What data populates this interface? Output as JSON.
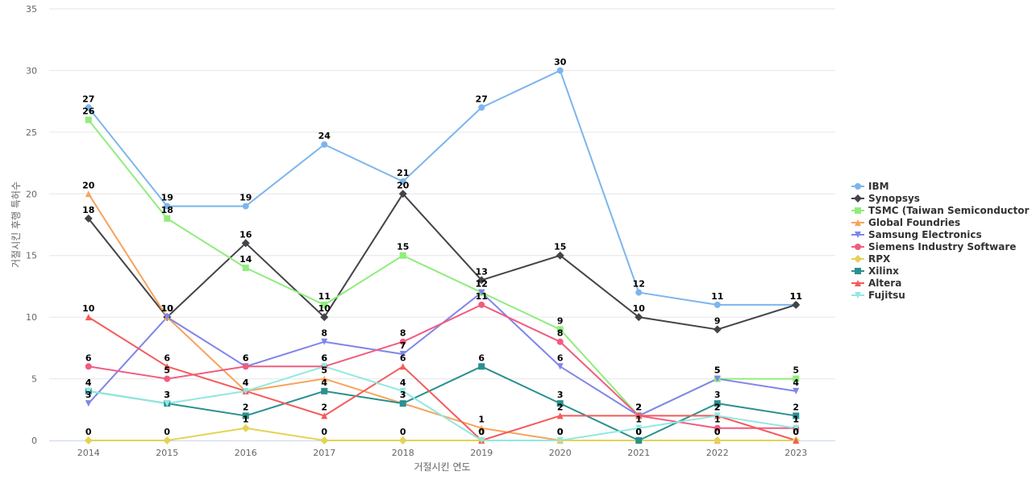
{
  "chart_data": {
    "type": "line",
    "title": "",
    "xlabel": "거절시킨 연도",
    "ylabel": "거절시킨 후행 특허수",
    "x": [
      "2014",
      "2015",
      "2016",
      "2017",
      "2018",
      "2019",
      "2020",
      "2021",
      "2022",
      "2023"
    ],
    "ylim": [
      0,
      35
    ],
    "yticks": [
      0,
      5,
      10,
      15,
      20,
      25,
      30,
      35
    ],
    "grid": true,
    "legend_position": "right",
    "series": [
      {
        "name": "IBM",
        "color": "#7cb5ec",
        "marker": "circle",
        "values": [
          27,
          19,
          19,
          24,
          21,
          27,
          30,
          12,
          11,
          11
        ]
      },
      {
        "name": "Synopsys",
        "color": "#434348",
        "marker": "diamond",
        "values": [
          18,
          10,
          16,
          10,
          20,
          13,
          15,
          10,
          9,
          11
        ]
      },
      {
        "name": "TSMC (Taiwan Semiconductor ...",
        "color": "#90ed7d",
        "marker": "square",
        "values": [
          26,
          18,
          14,
          11,
          15,
          12,
          9,
          2,
          5,
          5
        ]
      },
      {
        "name": "Global Foundries",
        "color": "#f7a35c",
        "marker": "triangle",
        "values": [
          20,
          10,
          4,
          5,
          3,
          1,
          0,
          0,
          0,
          0
        ]
      },
      {
        "name": "Samsung Electronics",
        "color": "#8085e9",
        "marker": "triangle-down",
        "values": [
          3,
          10,
          6,
          8,
          7,
          12,
          6,
          2,
          5,
          4
        ]
      },
      {
        "name": "Siemens Industry Software",
        "color": "#f15c80",
        "marker": "circle",
        "values": [
          6,
          5,
          6,
          6,
          8,
          11,
          8,
          2,
          1,
          1
        ]
      },
      {
        "name": "RPX",
        "color": "#e4d354",
        "marker": "diamond",
        "values": [
          0,
          0,
          1,
          0,
          0,
          0,
          0,
          0,
          0,
          0
        ]
      },
      {
        "name": "Xilinx",
        "color": "#2b908f",
        "marker": "square",
        "values": [
          4,
          3,
          2,
          4,
          3,
          6,
          3,
          0,
          3,
          2
        ]
      },
      {
        "name": "Altera",
        "color": "#f45b5b",
        "marker": "triangle",
        "values": [
          10,
          6,
          4,
          2,
          6,
          0,
          2,
          2,
          2,
          0
        ]
      },
      {
        "name": "Fujitsu",
        "color": "#91e8e1",
        "marker": "triangle-down",
        "values": [
          4,
          3,
          4,
          6,
          4,
          0,
          0,
          1,
          2,
          1
        ]
      }
    ]
  }
}
